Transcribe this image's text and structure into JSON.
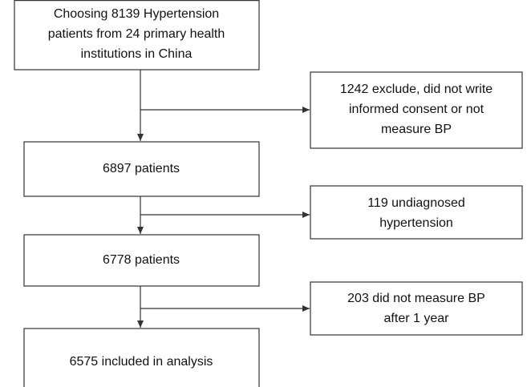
{
  "nodes": [
    {
      "lines": [
        "Choosing 8139 Hypertension",
        "patients from 24 primary health",
        "institutions in China"
      ]
    },
    {
      "lines": [
        "1242 exclude, did not write",
        "informed consent or not",
        "measure BP"
      ]
    },
    {
      "lines": [
        "6897 patients"
      ]
    },
    {
      "lines": [
        "119 undiagnosed",
        "hypertension"
      ]
    },
    {
      "lines": [
        "6778 patients"
      ]
    },
    {
      "lines": [
        "203 did not measure BP",
        "after 1 year"
      ]
    },
    {
      "lines": [
        "6575 included in analysis"
      ]
    }
  ]
}
